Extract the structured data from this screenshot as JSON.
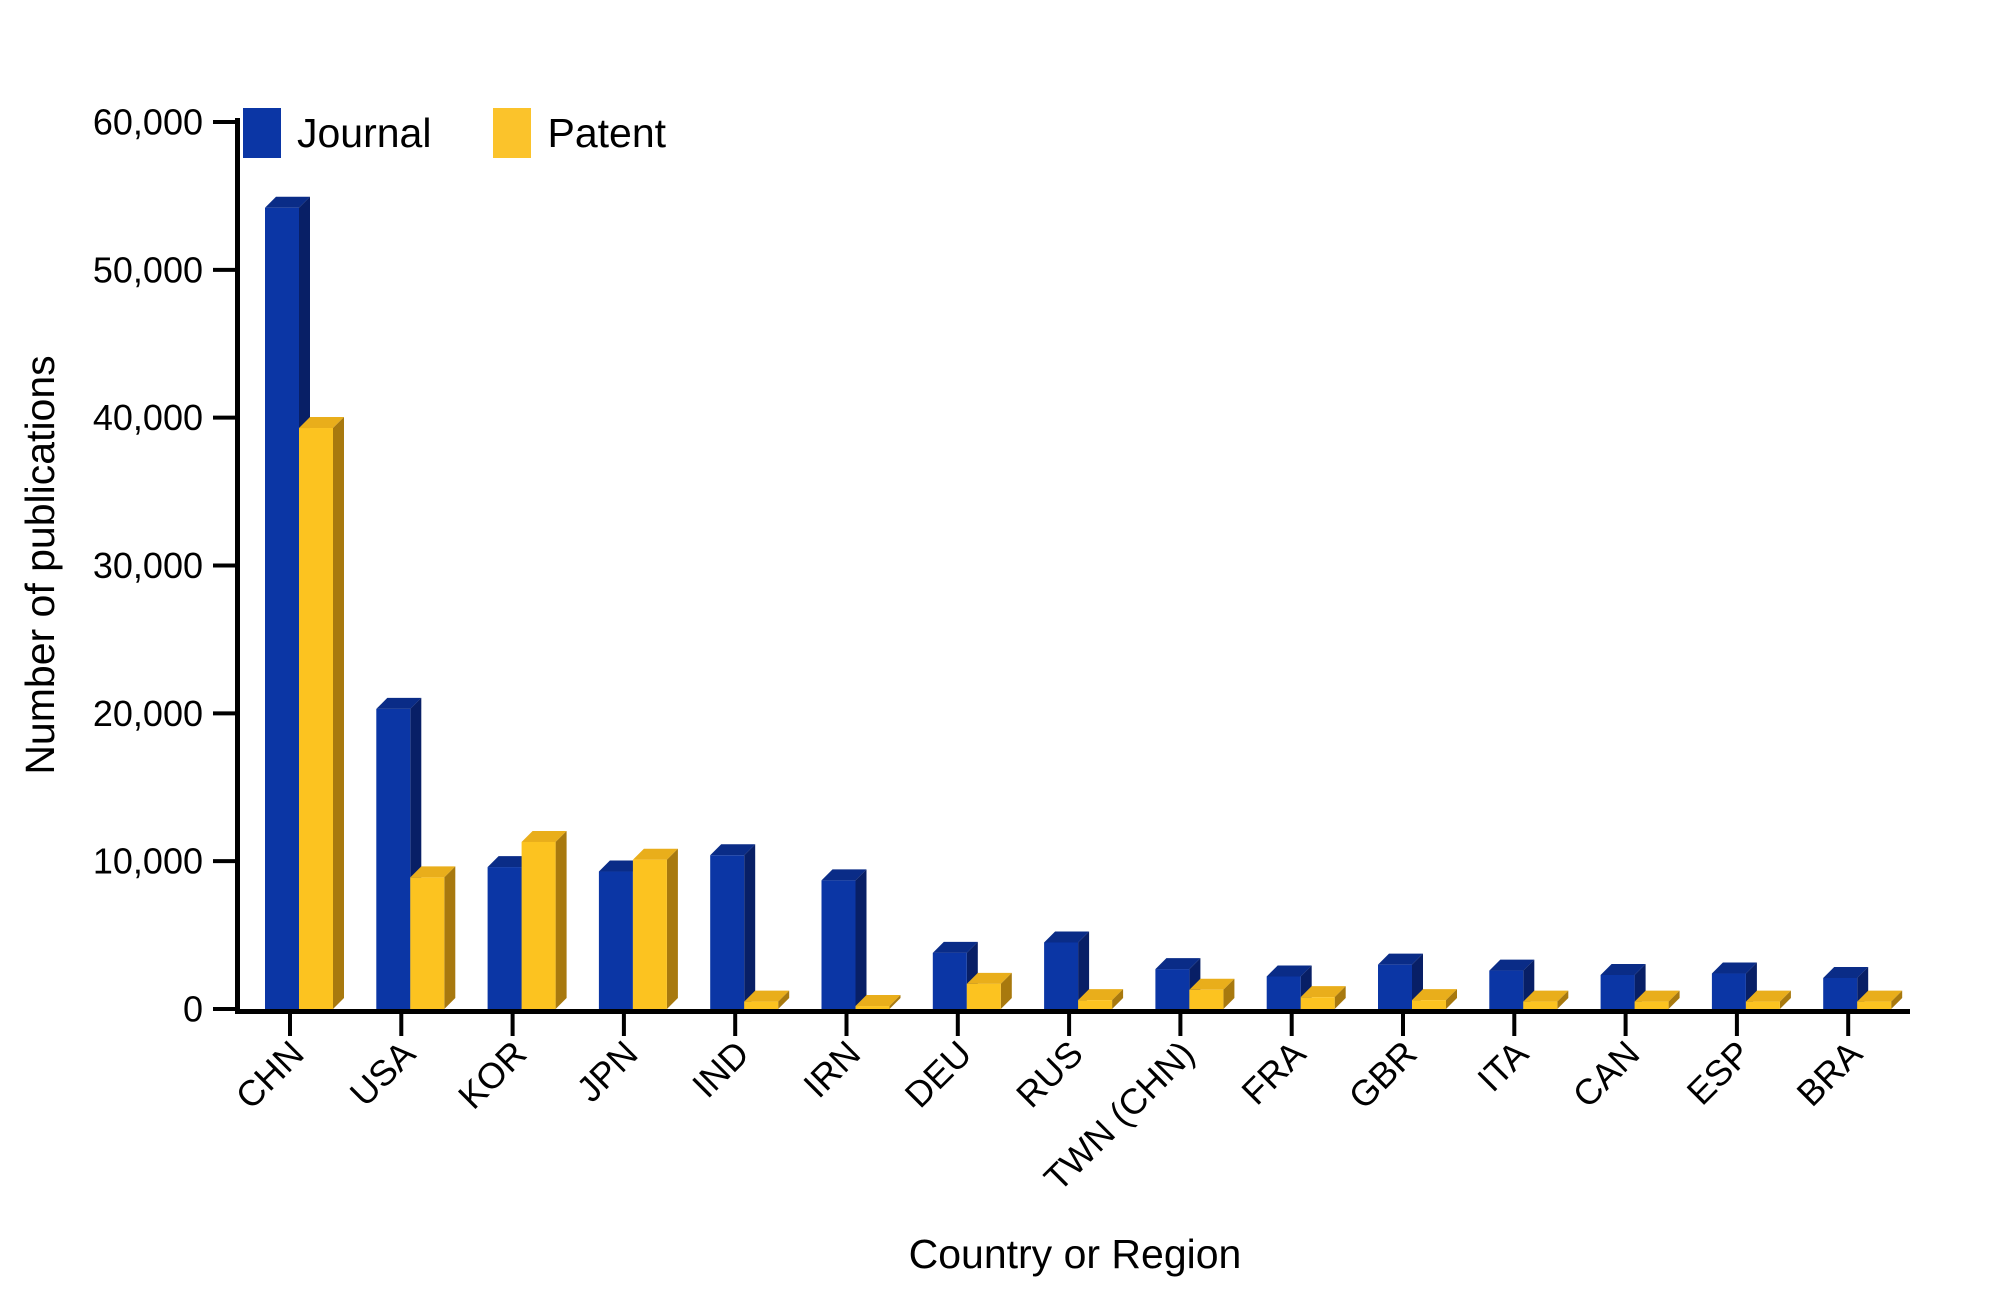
{
  "chart_data": {
    "type": "bar",
    "bar_style": "3d-grouped",
    "title": "",
    "xlabel": "Country or Region",
    "ylabel": "Number of publications",
    "categories": [
      "CHN",
      "USA",
      "KOR",
      "JPN",
      "IND",
      "IRN",
      "DEU",
      "RUS",
      "TWN (CHN)",
      "FRA",
      "GBR",
      "ITA",
      "CAN",
      "ESP",
      "BRA"
    ],
    "series": [
      {
        "name": "Journal",
        "values": [
          54200,
          20300,
          9600,
          9300,
          10400,
          8700,
          3800,
          4500,
          2700,
          2200,
          3000,
          2600,
          2300,
          2400,
          2100
        ],
        "colors": {
          "front": "#0B36A5",
          "top": "#0A2C87",
          "side": "#081F66"
        }
      },
      {
        "name": "Patent",
        "values": [
          39300,
          8900,
          11300,
          10100,
          500,
          200,
          1700,
          600,
          1300,
          800,
          600,
          500,
          500,
          500,
          500
        ],
        "colors": {
          "front": "#FCC320",
          "top": "#E9AE1B",
          "side": "#A8790E"
        }
      }
    ],
    "ylim": [
      0,
      60000
    ],
    "yticks": [
      0,
      10000,
      20000,
      30000,
      40000,
      50000,
      60000
    ],
    "ytick_labels": [
      "0",
      "10,000",
      "20,000",
      "30,000",
      "40,000",
      "50,000",
      "60,000"
    ],
    "grid": false,
    "axis_color": "#000000",
    "background": "#FFFFFF",
    "legend": {
      "position": "top-left-inside",
      "items": [
        {
          "label": "Journal",
          "swatch": "#0B36A5"
        },
        {
          "label": "Patent",
          "swatch": "#FBC32B"
        }
      ]
    }
  }
}
